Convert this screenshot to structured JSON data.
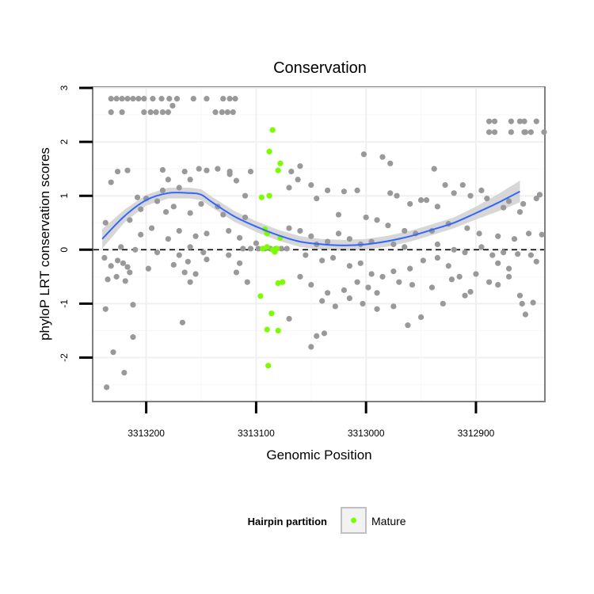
{
  "chart_data": {
    "type": "scatter",
    "title": "Conservation",
    "xlabel": "Genomic Position",
    "ylabel": "phyloP LRT conservation scores",
    "x_reversed": true,
    "xlim": [
      3313248,
      3312838
    ],
    "ylim": [
      -2.8,
      3.0
    ],
    "x_ticks": [
      3313200,
      3313100,
      3313000,
      3312900
    ],
    "x_tick_labels": [
      "3313200",
      "3313100",
      "3313000",
      "3312900"
    ],
    "y_ticks": [
      -2,
      -1,
      0,
      1,
      2,
      3
    ],
    "y_tick_labels": [
      "-2",
      "-1",
      "0",
      "1",
      "2",
      "3"
    ],
    "reference_line_y": 0,
    "grid": true,
    "legend": {
      "title": "Hairpin partition",
      "position": "bottom",
      "entries": [
        {
          "label": "Mature",
          "color": "#7cfc00"
        }
      ]
    },
    "colors": {
      "other": "#999999",
      "mature": "#7cfc00",
      "smooth": "#3366ff",
      "ribbon": "#d0d0d0"
    },
    "smooth": {
      "x": [
        3313240,
        3313220,
        3313200,
        3313180,
        3313160,
        3313150,
        3313140,
        3313120,
        3313100,
        3313080,
        3313060,
        3313040,
        3313020,
        3313000,
        3312980,
        3312960,
        3312940,
        3312920,
        3312900,
        3312880,
        3312860
      ],
      "y": [
        0.2,
        0.62,
        0.92,
        1.05,
        1.05,
        1.02,
        0.88,
        0.62,
        0.43,
        0.27,
        0.15,
        0.1,
        0.08,
        0.1,
        0.16,
        0.25,
        0.37,
        0.5,
        0.68,
        0.87,
        1.08
      ],
      "se": [
        0.18,
        0.12,
        0.1,
        0.1,
        0.1,
        0.1,
        0.1,
        0.1,
        0.1,
        0.1,
        0.1,
        0.1,
        0.1,
        0.1,
        0.1,
        0.1,
        0.1,
        0.1,
        0.12,
        0.16,
        0.2
      ]
    },
    "series": [
      {
        "name": "Mature",
        "points": [
          [
            3313085,
            2.22
          ],
          [
            3313088,
            1.82
          ],
          [
            3313078,
            1.6
          ],
          [
            3313080,
            1.47
          ],
          [
            3313088,
            1.0
          ],
          [
            3313095,
            0.97
          ],
          [
            3313092,
            0.38
          ],
          [
            3313090,
            0.3
          ],
          [
            3313078,
            0.22
          ],
          [
            3313090,
            0.05
          ],
          [
            3313094,
            0.02
          ],
          [
            3313085,
            0.0
          ],
          [
            3313083,
            -0.04
          ],
          [
            3313081,
            0.02
          ],
          [
            3313076,
            -0.6
          ],
          [
            3313080,
            -0.62
          ],
          [
            3313096,
            -0.86
          ],
          [
            3313086,
            -1.18
          ],
          [
            3313090,
            -1.48
          ],
          [
            3313080,
            -1.5
          ],
          [
            3313089,
            -2.15
          ]
        ]
      },
      {
        "points": [
          [
            3313232,
            2.8
          ],
          [
            3313227,
            2.8
          ],
          [
            3313222,
            2.8
          ],
          [
            3313217,
            2.8
          ],
          [
            3313212,
            2.8
          ],
          [
            3313207,
            2.8
          ],
          [
            3313202,
            2.8
          ],
          [
            3313194,
            2.8
          ],
          [
            3313186,
            2.8
          ],
          [
            3313179,
            2.8
          ],
          [
            3313172,
            2.8
          ],
          [
            3313157,
            2.8
          ],
          [
            3313145,
            2.8
          ],
          [
            3313130,
            2.8
          ],
          [
            3313124,
            2.8
          ],
          [
            3313119,
            2.8
          ],
          [
            3313232,
            2.55
          ],
          [
            3313222,
            2.55
          ],
          [
            3313202,
            2.55
          ],
          [
            3313196,
            2.55
          ],
          [
            3313191,
            2.55
          ],
          [
            3313185,
            2.55
          ],
          [
            3313180,
            2.55
          ],
          [
            3313137,
            2.55
          ],
          [
            3313131,
            2.55
          ],
          [
            3313126,
            2.55
          ],
          [
            3313121,
            2.55
          ],
          [
            3313176,
            2.67
          ],
          [
            3312888,
            2.38
          ],
          [
            3312883,
            2.38
          ],
          [
            3312868,
            2.38
          ],
          [
            3312860,
            2.38
          ],
          [
            3312856,
            2.38
          ],
          [
            3312845,
            2.38
          ],
          [
            3312888,
            2.18
          ],
          [
            3312883,
            2.18
          ],
          [
            3312868,
            2.18
          ],
          [
            3312856,
            2.18
          ],
          [
            3312850,
            2.18
          ],
          [
            3312838,
            2.18
          ],
          [
            3312855,
            2.18
          ],
          [
            3313226,
            1.45
          ],
          [
            3313217,
            1.47
          ],
          [
            3313185,
            1.48
          ],
          [
            3313165,
            1.45
          ],
          [
            3313152,
            1.5
          ],
          [
            3313145,
            1.47
          ],
          [
            3313135,
            1.5
          ],
          [
            3313124,
            1.45
          ],
          [
            3313232,
            1.25
          ],
          [
            3313180,
            1.3
          ],
          [
            3313160,
            1.3
          ],
          [
            3313118,
            1.28
          ],
          [
            3313185,
            1.1
          ],
          [
            3313170,
            1.15
          ],
          [
            3313110,
            1.0
          ],
          [
            3313208,
            0.97
          ],
          [
            3313200,
            0.95
          ],
          [
            3313190,
            0.9
          ],
          [
            3313175,
            0.8
          ],
          [
            3313150,
            0.85
          ],
          [
            3313135,
            0.8
          ],
          [
            3313205,
            0.75
          ],
          [
            3313182,
            0.7
          ],
          [
            3313160,
            0.68
          ],
          [
            3313130,
            0.65
          ],
          [
            3313110,
            0.6
          ],
          [
            3313237,
            0.5
          ],
          [
            3313215,
            0.55
          ],
          [
            3313195,
            0.4
          ],
          [
            3313170,
            0.35
          ],
          [
            3313145,
            0.3
          ],
          [
            3313125,
            0.35
          ],
          [
            3313205,
            0.28
          ],
          [
            3313180,
            0.2
          ],
          [
            3313155,
            0.25
          ],
          [
            3313115,
            0.22
          ],
          [
            3313100,
            0.12
          ],
          [
            3313223,
            0.05
          ],
          [
            3313210,
            0.0
          ],
          [
            3313190,
            -0.05
          ],
          [
            3313170,
            -0.1
          ],
          [
            3313160,
            0.05
          ],
          [
            3313148,
            -0.05
          ],
          [
            3313238,
            -0.15
          ],
          [
            3313232,
            -0.3
          ],
          [
            3313226,
            -0.2
          ],
          [
            3313221,
            -0.25
          ],
          [
            3313217,
            -0.32
          ],
          [
            3313215,
            -0.42
          ],
          [
            3313198,
            -0.35
          ],
          [
            3313175,
            -0.28
          ],
          [
            3313162,
            -0.22
          ],
          [
            3313145,
            -0.18
          ],
          [
            3313235,
            -0.55
          ],
          [
            3313227,
            -0.5
          ],
          [
            3313219,
            -0.58
          ],
          [
            3313165,
            -0.42
          ],
          [
            3313155,
            -0.45
          ],
          [
            3313160,
            -0.6
          ],
          [
            3313118,
            -0.42
          ],
          [
            3313237,
            -1.1
          ],
          [
            3313212,
            -1.02
          ],
          [
            3313167,
            -1.35
          ],
          [
            3313230,
            -1.9
          ],
          [
            3313236,
            -2.55
          ],
          [
            3313220,
            -2.28
          ],
          [
            3313212,
            -1.62
          ],
          [
            3313124,
            1.4
          ],
          [
            3313105,
            1.45
          ],
          [
            3313068,
            1.45
          ],
          [
            3313060,
            1.55
          ],
          [
            3313062,
            1.3
          ],
          [
            3313050,
            1.2
          ],
          [
            3313070,
            1.15
          ],
          [
            3313035,
            1.1
          ],
          [
            3313020,
            1.08
          ],
          [
            3313008,
            1.1
          ],
          [
            3312978,
            1.05
          ],
          [
            3312972,
            1.0
          ],
          [
            3312945,
            0.92
          ],
          [
            3312950,
            0.92
          ],
          [
            3312960,
            0.85
          ],
          [
            3312935,
            0.8
          ],
          [
            3312920,
            1.05
          ],
          [
            3312905,
            1.0
          ],
          [
            3312890,
            0.95
          ],
          [
            3312870,
            0.9
          ],
          [
            3312857,
            0.85
          ],
          [
            3312845,
            0.95
          ],
          [
            3312842,
            1.02
          ],
          [
            3313002,
            1.77
          ],
          [
            3312985,
            1.72
          ],
          [
            3312978,
            1.6
          ],
          [
            3312938,
            1.5
          ],
          [
            3312928,
            1.2
          ],
          [
            3312912,
            1.2
          ],
          [
            3312895,
            1.1
          ],
          [
            3312875,
            0.78
          ],
          [
            3312860,
            0.7
          ],
          [
            3313045,
            0.95
          ],
          [
            3313025,
            0.65
          ],
          [
            3313000,
            0.6
          ],
          [
            3312990,
            0.55
          ],
          [
            3312980,
            0.45
          ],
          [
            3312965,
            0.35
          ],
          [
            3312955,
            0.3
          ],
          [
            3312940,
            0.35
          ],
          [
            3312925,
            0.48
          ],
          [
            3312908,
            0.4
          ],
          [
            3312897,
            0.3
          ],
          [
            3312880,
            0.25
          ],
          [
            3312865,
            0.2
          ],
          [
            3312852,
            0.3
          ],
          [
            3312840,
            0.28
          ],
          [
            3313070,
            0.4
          ],
          [
            3313060,
            0.35
          ],
          [
            3313050,
            0.25
          ],
          [
            3313045,
            0.1
          ],
          [
            3313035,
            0.15
          ],
          [
            3313025,
            0.3
          ],
          [
            3313015,
            0.2
          ],
          [
            3313005,
            0.1
          ],
          [
            3312995,
            0.15
          ],
          [
            3312975,
            0.1
          ],
          [
            3312965,
            0.05
          ],
          [
            3312935,
            0.1
          ],
          [
            3312920,
            0.0
          ],
          [
            3312910,
            -0.05
          ],
          [
            3312895,
            0.05
          ],
          [
            3312885,
            -0.1
          ],
          [
            3312875,
            -0.05
          ],
          [
            3312862,
            -0.08
          ],
          [
            3312850,
            -0.1
          ],
          [
            3312845,
            -0.22
          ],
          [
            3313105,
            0.02
          ],
          [
            3313098,
            0.02
          ],
          [
            3313092,
            0.02
          ],
          [
            3313087,
            0.02
          ],
          [
            3313082,
            0.02
          ],
          [
            3313077,
            0.02
          ],
          [
            3313072,
            0.02
          ],
          [
            3313112,
            0.02
          ],
          [
            3313055,
            -0.1
          ],
          [
            3313040,
            -0.2
          ],
          [
            3313030,
            -0.15
          ],
          [
            3313015,
            -0.3
          ],
          [
            3313005,
            -0.25
          ],
          [
            3312995,
            -0.45
          ],
          [
            3312985,
            -0.5
          ],
          [
            3312975,
            -0.4
          ],
          [
            3312960,
            -0.35
          ],
          [
            3312948,
            -0.2
          ],
          [
            3312935,
            -0.15
          ],
          [
            3312925,
            -0.3
          ],
          [
            3312915,
            -0.5
          ],
          [
            3312900,
            -0.45
          ],
          [
            3312880,
            -0.25
          ],
          [
            3312870,
            -0.35
          ],
          [
            3313060,
            -0.5
          ],
          [
            3313050,
            -0.65
          ],
          [
            3313035,
            -0.8
          ],
          [
            3313020,
            -0.75
          ],
          [
            3313008,
            -0.6
          ],
          [
            3312998,
            -0.7
          ],
          [
            3312990,
            -0.8
          ],
          [
            3312970,
            -0.6
          ],
          [
            3312958,
            -0.65
          ],
          [
            3312940,
            -0.7
          ],
          [
            3312922,
            -0.55
          ],
          [
            3312905,
            -0.78
          ],
          [
            3312888,
            -0.6
          ],
          [
            3312870,
            -0.5
          ],
          [
            3312858,
            -1.0
          ],
          [
            3312848,
            -0.98
          ],
          [
            3313040,
            -0.95
          ],
          [
            3313028,
            -1.05
          ],
          [
            3313015,
            -0.9
          ],
          [
            3313003,
            -1.0
          ],
          [
            3312990,
            -1.1
          ],
          [
            3312975,
            -1.05
          ],
          [
            3312950,
            -1.25
          ],
          [
            3312962,
            -1.4
          ],
          [
            3312930,
            -1.0
          ],
          [
            3312910,
            -0.85
          ],
          [
            3312880,
            -0.65
          ],
          [
            3312860,
            -0.85
          ],
          [
            3312855,
            -1.2
          ],
          [
            3313045,
            -1.6
          ],
          [
            3313050,
            -1.8
          ],
          [
            3313038,
            -1.55
          ],
          [
            3313070,
            -1.28
          ],
          [
            3313115,
            -0.25
          ],
          [
            3313125,
            -0.1
          ],
          [
            3313108,
            -0.6
          ]
        ]
      }
    ]
  }
}
